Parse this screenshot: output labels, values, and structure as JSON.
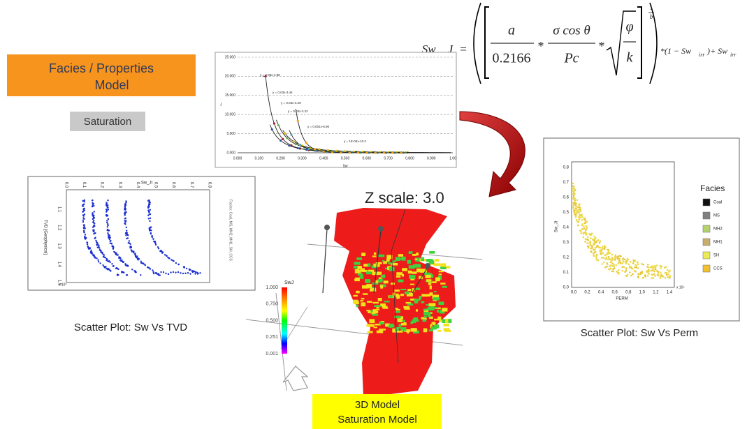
{
  "header": {
    "title": [
      "Facies / Properties",
      "Model"
    ],
    "tag": "Saturation"
  },
  "formula": {
    "lhs": "Sw _ J",
    "equals": "=",
    "num1": "a",
    "den1": "0.2166",
    "times1": "*",
    "num2": "σ cos θ",
    "den2": "Pc",
    "times2": "*",
    "num3": "φ",
    "den3": "k",
    "exp_num": "1",
    "exp_den": "b",
    "tail1": "*(1 − Sw",
    "sub1": "irr",
    "tail2": ")+ Sw",
    "sub2": "irr"
  },
  "j_chart": {
    "yticks": [
      "25.000",
      "20.000",
      "15.000",
      "10.000",
      "5.000",
      "0.000"
    ],
    "xticks": [
      "0.000",
      "0.100",
      "0.200",
      "0.300",
      "0.400",
      "0.500",
      "0.600",
      "0.700",
      "0.800",
      "0.900",
      "1.00"
    ],
    "xlabel": "Sw",
    "ylabel": "J",
    "equations": [
      "y = 0.08x-4.98",
      "y = 0.03x-3.44",
      "y = 0.03x-3.29",
      "y = 0.03x-3.22",
      "y = 0.001x-6.90",
      "y = 1E-04x-10.2"
    ]
  },
  "tvd_chart": {
    "xticks": [
      "0.0",
      "0.1",
      "0.2",
      "0.3",
      "0.4",
      "0.5",
      "0.6",
      "0.7",
      "0.8"
    ],
    "yticks": [
      "1.1",
      "1.2",
      "1.3",
      "1.4",
      "1.5"
    ],
    "xlabel": "Sw_Jt",
    "ylabel": "TVD [Geophysical]",
    "scale": "x 10³",
    "side_note": "Facies: Coal, MS, MH2, MH1, SH, CCS",
    "caption": "Scatter Plot: Sw Vs TVD"
  },
  "model": {
    "zscale": "Z scale: 3.0",
    "colorbar_title": "SwJ",
    "colorbar_ticks": [
      "1.000",
      "0.750",
      "0.500",
      "0.251",
      "0.001"
    ],
    "caption": [
      "3D Model",
      "Saturation Model"
    ]
  },
  "perm_chart": {
    "yticks": [
      "0.8",
      "0.7",
      "0.6",
      "0.5",
      "0.4",
      "0.3",
      "0.2",
      "0.1",
      "0.0"
    ],
    "xticks": [
      "0.0",
      "0.2",
      "0.4",
      "0.6",
      "0.8",
      "1.0",
      "1.2",
      "1.4"
    ],
    "xlabel": "PERM",
    "ylabel": "Sw_Jt",
    "scale": "x 10⁵",
    "legend_title": "Facies",
    "legend": [
      {
        "name": "Coal",
        "color": "#111111"
      },
      {
        "name": "MS",
        "color": "#808080"
      },
      {
        "name": "MH2",
        "color": "#b5d36a"
      },
      {
        "name": "MH1",
        "color": "#c8ad6e"
      },
      {
        "name": "SH",
        "color": "#ecec52"
      },
      {
        "name": "CCS",
        "color": "#f2c12e"
      }
    ],
    "caption": "Scatter Plot: Sw Vs Perm"
  }
}
